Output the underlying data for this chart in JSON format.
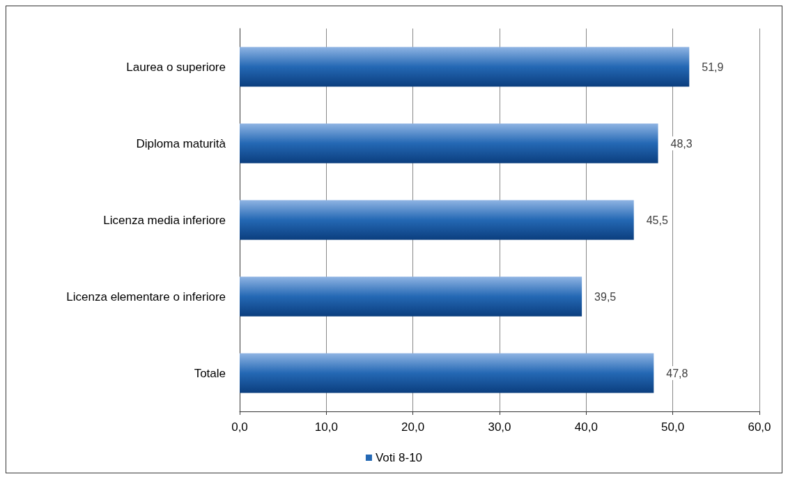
{
  "chart_data": {
    "type": "bar",
    "orientation": "horizontal",
    "categories": [
      "Laurea o superiore",
      "Diploma maturità",
      "Licenza media inferiore",
      "Licenza elementare o inferiore",
      "Totale"
    ],
    "series": [
      {
        "name": "Voti 8-10",
        "color": "#2468b4",
        "values": [
          51.9,
          48.3,
          45.5,
          39.5,
          47.8
        ],
        "value_labels": [
          "51,9",
          "48,3",
          "45,5",
          "39,5",
          "47,8"
        ]
      }
    ],
    "xlim": [
      0,
      60
    ],
    "xticks": [
      {
        "value": 0,
        "label": "0,0"
      },
      {
        "value": 10,
        "label": "10,0"
      },
      {
        "value": 20,
        "label": "20,0"
      },
      {
        "value": 30,
        "label": "30,0"
      },
      {
        "value": 40,
        "label": "40,0"
      },
      {
        "value": 50,
        "label": "50,0"
      },
      {
        "value": 60,
        "label": "60,0"
      }
    ],
    "grid": "x",
    "legend": "bottom"
  }
}
